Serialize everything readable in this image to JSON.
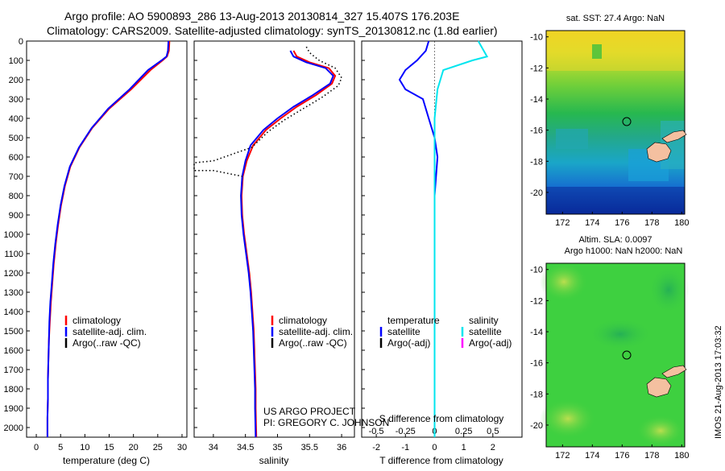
{
  "title": {
    "line1": "Argo profile: AO 5900893_286 13-Aug-2013 20130814_327 15.407S 176.203E",
    "line2": "Climatology: CARS2009. Satellite-adjusted climatology: synTS_20130812.nc (1.8d earlier)"
  },
  "footer": {
    "project": "US ARGO PROJECT",
    "pi": "PI: GREGORY C. JOHNSON",
    "stamp": "IMOS 21-Aug-2013 17:03:32"
  },
  "colors": {
    "climatology": "#ff0000",
    "satellite": "#0000ff",
    "argo": "#000000",
    "salinity_satellite": "#00e5ee",
    "salinity_argo": "#ff00ff"
  },
  "chart_data": [
    {
      "type": "line",
      "name": "temperature-profile",
      "xlabel": "temperature (deg C)",
      "ylabel": "",
      "xlim": [
        -2,
        31
      ],
      "ylim": [
        2050,
        0
      ],
      "xticks": [
        0,
        5,
        10,
        15,
        20,
        25,
        30
      ],
      "yticks": [
        0,
        100,
        200,
        300,
        400,
        500,
        600,
        700,
        800,
        900,
        1000,
        1100,
        1200,
        1300,
        1400,
        1500,
        1600,
        1700,
        1800,
        1900,
        2000
      ],
      "legend": [
        "climatology",
        "satellite-adj. clim.",
        "Argo(..raw -QC)"
      ],
      "legend_position": "bottom-center",
      "series": [
        {
          "name": "climatology",
          "x": [
            27.4,
            27.3,
            26.9,
            26.0,
            23.5,
            19.5,
            15.0,
            11.5,
            8.9,
            7.0,
            5.9,
            5.1,
            4.5,
            4.0,
            3.6,
            3.3,
            3.0,
            2.8,
            2.6,
            2.5,
            2.4,
            2.4,
            2.3,
            2.3
          ],
          "y": [
            0,
            50,
            80,
            100,
            150,
            250,
            350,
            450,
            550,
            650,
            750,
            850,
            950,
            1050,
            1150,
            1250,
            1350,
            1450,
            1550,
            1650,
            1750,
            1850,
            1950,
            2050
          ]
        },
        {
          "name": "satellite-adj. clim.",
          "x": [
            27.2,
            27.1,
            26.8,
            25.8,
            23.0,
            19.2,
            14.8,
            11.4,
            8.8,
            6.9,
            5.8,
            5.0,
            4.4,
            3.9,
            3.5,
            3.2,
            2.9,
            2.7,
            2.6,
            2.5,
            2.4,
            2.4,
            2.3,
            2.3
          ],
          "y": [
            0,
            50,
            80,
            100,
            150,
            250,
            350,
            450,
            550,
            650,
            750,
            850,
            950,
            1050,
            1150,
            1250,
            1350,
            1450,
            1550,
            1650,
            1750,
            1850,
            1950,
            2050
          ]
        }
      ]
    },
    {
      "type": "line",
      "name": "salinity-profile",
      "xlabel": "salinity",
      "ylabel": "",
      "xlim": [
        33.7,
        36.2
      ],
      "ylim": [
        2050,
        0
      ],
      "xticks": [
        34,
        34.5,
        35,
        35.5,
        36
      ],
      "legend": [
        "climatology",
        "satellite-adj. clim.",
        "Argo(..raw -QC)"
      ],
      "legend_position": "bottom-center",
      "series": [
        {
          "name": "climatology",
          "x": [
            35.25,
            35.3,
            35.5,
            35.8,
            35.9,
            35.85,
            35.6,
            35.3,
            35.05,
            34.82,
            34.62,
            34.52,
            34.46,
            34.44,
            34.45,
            34.48,
            34.52,
            34.56,
            34.59,
            34.61,
            34.63,
            34.64,
            34.65,
            34.66,
            34.66,
            34.67
          ],
          "y": [
            50,
            80,
            110,
            140,
            180,
            220,
            280,
            340,
            400,
            460,
            540,
            620,
            700,
            800,
            900,
            1000,
            1100,
            1200,
            1300,
            1400,
            1500,
            1600,
            1700,
            1800,
            1900,
            2050
          ]
        },
        {
          "name": "satellite-adj. clim.",
          "x": [
            35.2,
            35.25,
            35.45,
            35.75,
            35.87,
            35.82,
            35.55,
            35.25,
            35.0,
            34.78,
            34.58,
            34.5,
            34.45,
            34.43,
            34.44,
            34.47,
            34.51,
            34.55,
            34.58,
            34.6,
            34.62,
            34.63,
            34.64,
            34.65,
            34.65,
            34.66
          ],
          "y": [
            50,
            80,
            110,
            140,
            180,
            220,
            280,
            340,
            400,
            460,
            540,
            620,
            700,
            800,
            900,
            1000,
            1100,
            1200,
            1300,
            1400,
            1500,
            1600,
            1700,
            1800,
            1900,
            2050
          ]
        },
        {
          "name": "Argo(..raw -QC)",
          "x": [
            35.45,
            35.5,
            35.65,
            35.9,
            36.0,
            35.95,
            35.7,
            35.4,
            35.1,
            34.85,
            34.6,
            34.0,
            33.7,
            33.7,
            34.0,
            34.45
          ],
          "y": [
            30,
            60,
            100,
            140,
            190,
            230,
            290,
            350,
            410,
            470,
            550,
            620,
            630,
            670,
            670,
            700
          ]
        }
      ]
    },
    {
      "type": "line",
      "name": "difference-profile",
      "xlabel": "T difference from climatology",
      "xlabel_top": "S difference from climatology",
      "xlim": [
        -2.5,
        3
      ],
      "ylim": [
        2050,
        0
      ],
      "xticks_bottom": [
        -2,
        -1,
        0,
        1,
        2
      ],
      "xticks_top": [
        "-0.5",
        "-0.25",
        "0",
        "0.25",
        "0.5"
      ],
      "legend": [
        "temperature",
        "satellite",
        "Argo(-adj)",
        "salinity",
        "satellite",
        "Argo(-adj)"
      ],
      "legend_position": "bottom-center",
      "series": [
        {
          "name": "temperature satellite",
          "x": [
            -0.2,
            -0.3,
            -0.6,
            -1.0,
            -1.2,
            -1.0,
            -0.4,
            -0.2,
            0.0,
            0.1,
            0.0,
            0.0,
            0.0,
            0.0,
            0.0,
            0.0
          ],
          "y": [
            0,
            50,
            100,
            150,
            200,
            250,
            300,
            400,
            500,
            600,
            800,
            1000,
            1200,
            1500,
            1800,
            2050
          ]
        },
        {
          "name": "salinity satellite",
          "x": [
            1.5,
            1.8,
            1.3,
            0.3,
            0.1,
            0.0,
            0.0,
            0.0,
            0.0,
            0.0,
            0.0,
            0.0
          ],
          "y": [
            0,
            80,
            100,
            150,
            250,
            400,
            600,
            800,
            1000,
            1300,
            1600,
            2050
          ]
        }
      ]
    }
  ],
  "maps": {
    "sst": {
      "title": "sat. SST: 27.4 Argo: NaN",
      "xticks": [
        172,
        174,
        176,
        178,
        180
      ],
      "yticks": [
        -10,
        -12,
        -14,
        -16,
        -18,
        -20
      ]
    },
    "sla": {
      "title1": "Altim. SLA: 0.0097",
      "title2": "Argo h1000: NaN h2000: NaN",
      "xticks": [
        172,
        174,
        176,
        178,
        180
      ],
      "yticks": [
        -10,
        -12,
        -14,
        -16,
        -18,
        -20
      ]
    }
  }
}
